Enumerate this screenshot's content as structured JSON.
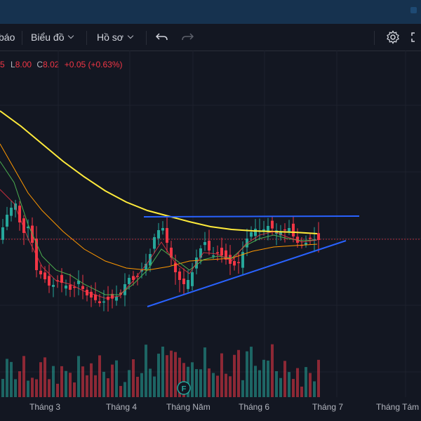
{
  "toolbar": {
    "item_partial": "báo",
    "chart_menu": "Biểu đồ",
    "profile_menu": "Hồ sơ",
    "undo_icon": "undo-icon",
    "redo_icon": "redo-icon",
    "settings_icon": "gear-icon",
    "fullscreen_icon": "fullscreen-icon"
  },
  "ohlc": {
    "o_partial": "5",
    "l_label": "L",
    "l_value": "8.00",
    "c_label": "C",
    "c_value": "8.02",
    "change": "+0.05 (+0.63%)"
  },
  "colors": {
    "up": "#26a69a",
    "down": "#f23645",
    "ma_long": "#ffeb3b",
    "ma_mid": "#ff9800",
    "ma_short": "#4caf50",
    "trend_lines": "#2962ff"
  },
  "earnings_marker": "F",
  "x_axis": {
    "labels": [
      "Tháng 3",
      "Tháng 4",
      "Tháng Năm",
      "Tháng 6",
      "Tháng 7",
      "Tháng Tám"
    ]
  }
}
